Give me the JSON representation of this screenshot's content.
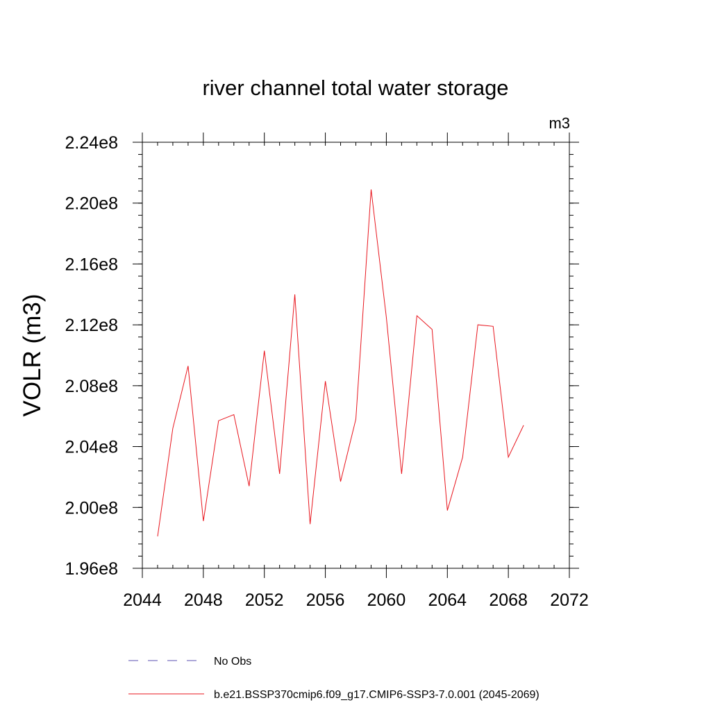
{
  "chart_data": {
    "type": "line",
    "title": "river channel total water storage",
    "units_label": "m3",
    "ylabel": "VOLR  (m3)",
    "xlabel": "",
    "xlim": [
      2044,
      2072
    ],
    "ylim": [
      196000000,
      224000000
    ],
    "x_ticks": [
      2044,
      2048,
      2052,
      2056,
      2060,
      2064,
      2068,
      2072
    ],
    "x_tick_labels": [
      "2044",
      "2048",
      "2052",
      "2056",
      "2060",
      "2064",
      "2068",
      "2072"
    ],
    "y_ticks": [
      196000000,
      200000000,
      204000000,
      208000000,
      212000000,
      216000000,
      220000000,
      224000000
    ],
    "y_tick_labels": [
      "1.96e8",
      "2.00e8",
      "2.04e8",
      "2.08e8",
      "2.12e8",
      "2.16e8",
      "2.20e8",
      "2.24e8"
    ],
    "grid": false,
    "legend_position": "bottom",
    "series": [
      {
        "name": "b.e21.BSSP370cmip6.f09_g17.CMIP6-SSP3-7.0.001 (2045-2069)",
        "color": "#e8141c",
        "dash": "solid",
        "x": [
          2045,
          2046,
          2047,
          2048,
          2049,
          2050,
          2051,
          2052,
          2053,
          2054,
          2055,
          2056,
          2057,
          2058,
          2059,
          2060,
          2061,
          2062,
          2063,
          2064,
          2065,
          2066,
          2067,
          2068,
          2069
        ],
        "y": [
          198100000,
          205200000,
          209300000,
          199100000,
          205700000,
          206100000,
          201400000,
          210300000,
          202200000,
          214000000,
          198900000,
          208300000,
          201700000,
          205800000,
          220900000,
          212500000,
          202200000,
          212600000,
          211700000,
          199800000,
          203300000,
          212000000,
          211900000,
          203300000,
          205400000
        ]
      }
    ],
    "legend": [
      {
        "label": "No Obs",
        "color": "#5a4fb0",
        "dash": "dashed"
      },
      {
        "label": "b.e21.BSSP370cmip6.f09_g17.CMIP6-SSP3-7.0.001 (2045-2069)",
        "color": "#e8141c",
        "dash": "solid"
      }
    ]
  }
}
